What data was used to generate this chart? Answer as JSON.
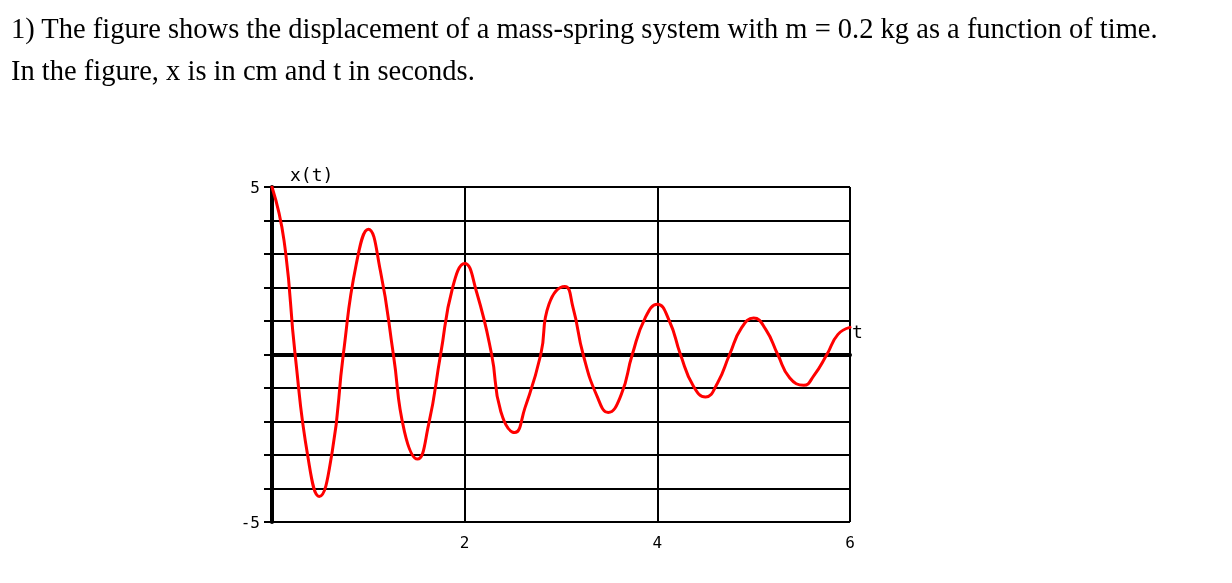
{
  "chart_data": {
    "type": "line",
    "title": "1) The figure shows the displacement of a mass-spring system with m = 0.2 kg as a function of time. In the figure, x is in cm and t in seconds.",
    "xlabel": "t",
    "ylabel": "x(t)",
    "xlim": [
      0,
      6
    ],
    "xticks": [
      {
        "value": 0,
        "label": null
      },
      2,
      4,
      6
    ],
    "ylim": [
      -5,
      5
    ],
    "yticks": [
      -5,
      {
        "value": -4,
        "label": null
      },
      {
        "value": -3,
        "label": null
      },
      {
        "value": -2,
        "label": null
      },
      {
        "value": -1,
        "label": null
      },
      {
        "value": 0,
        "label": null
      },
      {
        "value": 1,
        "label": null
      },
      {
        "value": 2,
        "label": null
      },
      {
        "value": 3,
        "label": null
      },
      {
        "value": 4,
        "label": null
      },
      5
    ],
    "grid": true,
    "marker": "none",
    "line_style": "solid",
    "series": [
      {
        "color": "#ff0000",
        "x": [
          0,
          0.125,
          0.24,
          0.375,
          0.49,
          0.625,
          0.74,
          0.875,
          1.0,
          1.125,
          1.26,
          1.375,
          1.51,
          1.625,
          1.75,
          1.875,
          2.0,
          2.125,
          2.28,
          2.375,
          2.52,
          2.625,
          2.79,
          2.875,
          3.04,
          3.125,
          3.23,
          3.375,
          3.49,
          3.625,
          3.74,
          3.875,
          4.0,
          4.125,
          4.24,
          4.375,
          4.5,
          4.625,
          4.75,
          4.875,
          5.0,
          5.125,
          5.25,
          5.375,
          5.52,
          5.625,
          5.76,
          5.875,
          6.0
        ],
        "values": [
          5,
          3.4,
          0,
          -3.1,
          -4.24,
          -2.9,
          0,
          2.7,
          3.74,
          2.5,
          0,
          -2.3,
          -3.12,
          -2.1,
          0,
          2.0,
          2.72,
          1.85,
          0,
          -1.7,
          -2.33,
          -1.6,
          0,
          1.5,
          2.03,
          1.4,
          0,
          -1.25,
          -1.73,
          -1.2,
          0,
          1.1,
          1.5,
          1.0,
          0,
          -0.95,
          -1.27,
          -0.85,
          0,
          0.8,
          1.09,
          0.75,
          0,
          -0.7,
          -0.92,
          -0.63,
          0,
          0.6,
          0.81
        ]
      }
    ]
  }
}
